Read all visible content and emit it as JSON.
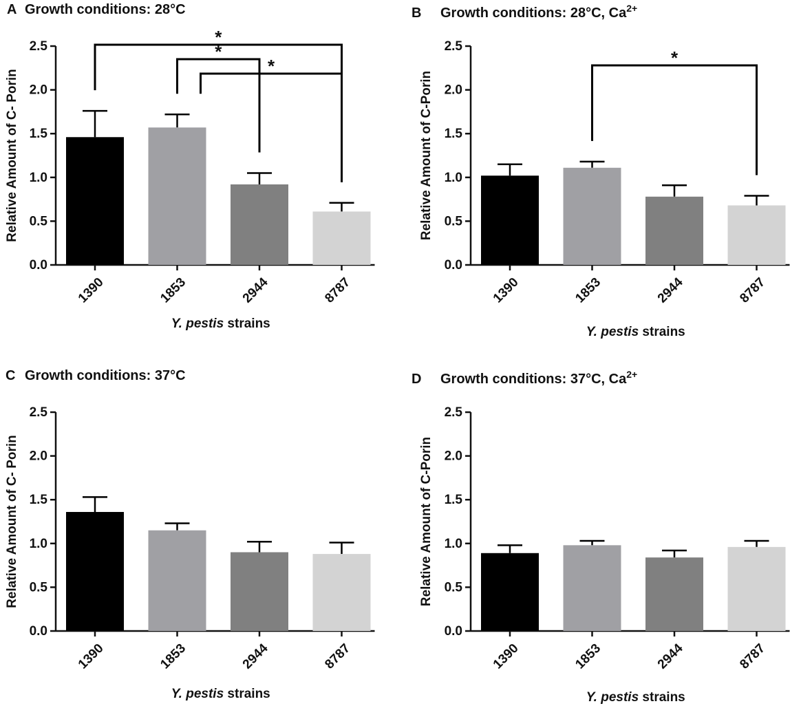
{
  "figure": {
    "colors": {
      "bars": [
        "#000000",
        "#a0a0a4",
        "#808080",
        "#d3d3d3"
      ],
      "axis": "#111111"
    }
  },
  "chart_data": [
    {
      "panel": "A",
      "title": "Growth conditions: 28°C",
      "title_sup": "",
      "type": "bar",
      "categories": [
        "1390",
        "1853",
        "2944",
        "8787"
      ],
      "values": [
        1.46,
        1.57,
        0.92,
        0.61
      ],
      "errors": [
        0.3,
        0.15,
        0.13,
        0.1
      ],
      "ylabel": "Relative Amount of C- Porin",
      "xlabel_italic": "Y. pestis",
      "xlabel_rest": " strains",
      "ylim": [
        0,
        2.5
      ],
      "yticks": [
        "0.0",
        "0.5",
        "1.0",
        "1.5",
        "2.0",
        "2.5"
      ],
      "significance": [
        {
          "from": 0,
          "to": 3,
          "label": "*"
        },
        {
          "from": 1,
          "to": 2,
          "label": "*"
        },
        {
          "from": 1,
          "to": 3,
          "label": "*"
        }
      ]
    },
    {
      "panel": "B",
      "title": "Growth conditions: 28°C, Ca",
      "title_sup": "2+",
      "type": "bar",
      "categories": [
        "1390",
        "1853",
        "2944",
        "8787"
      ],
      "values": [
        1.02,
        1.11,
        0.78,
        0.68
      ],
      "errors": [
        0.13,
        0.07,
        0.13,
        0.11
      ],
      "ylabel": "Relative Amount of C-Porin",
      "xlabel_italic": "Y. pestis",
      "xlabel_rest": " strains",
      "ylim": [
        0,
        2.5
      ],
      "yticks": [
        "0.0",
        "0.5",
        "1.0",
        "1.5",
        "2.0",
        "2.5"
      ],
      "significance": [
        {
          "from": 1,
          "to": 3,
          "label": "*"
        }
      ]
    },
    {
      "panel": "C",
      "title": "Growth conditions: 37°C",
      "title_sup": "",
      "type": "bar",
      "categories": [
        "1390",
        "1853",
        "2944",
        "8787"
      ],
      "values": [
        1.36,
        1.15,
        0.9,
        0.88
      ],
      "errors": [
        0.17,
        0.08,
        0.12,
        0.13
      ],
      "ylabel": "Relative Amount of C- Porin",
      "xlabel_italic": "Y. pestis",
      "xlabel_rest": " strains",
      "ylim": [
        0,
        2.5
      ],
      "yticks": [
        "0.0",
        "0.5",
        "1.0",
        "1.5",
        "2.0",
        "2.5"
      ],
      "significance": []
    },
    {
      "panel": "D",
      "title": "Growth conditions: 37°C, Ca",
      "title_sup": "2+",
      "type": "bar",
      "categories": [
        "1390",
        "1853",
        "2944",
        "8787"
      ],
      "values": [
        0.89,
        0.98,
        0.84,
        0.96
      ],
      "errors": [
        0.09,
        0.05,
        0.08,
        0.07
      ],
      "ylabel": "Relative Amount of C-Porin",
      "xlabel_italic": "Y. pestis",
      "xlabel_rest": " strains",
      "ylim": [
        0,
        2.5
      ],
      "yticks": [
        "0.0",
        "0.5",
        "1.0",
        "1.5",
        "2.0",
        "2.5"
      ],
      "significance": []
    }
  ]
}
